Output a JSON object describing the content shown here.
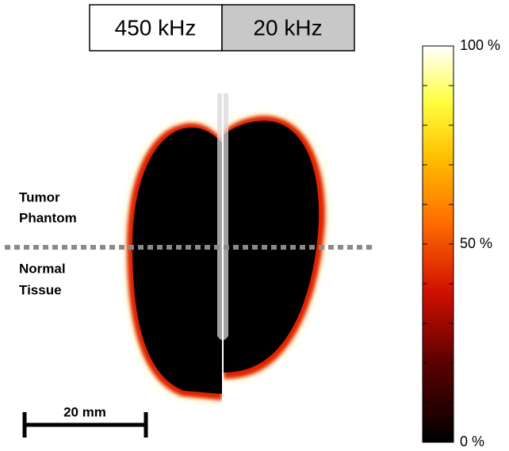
{
  "header": {
    "left": "450 kHz",
    "right": "20 kHz"
  },
  "labels": {
    "tumor": [
      "Tumor",
      "Phantom"
    ],
    "normal": [
      "Normal",
      "Tissue"
    ]
  },
  "scale_bar": "20 mm",
  "colorbar": {
    "lim": [
      0,
      100
    ],
    "ticks": [
      {
        "value": 100,
        "label": "100 %"
      },
      {
        "value": 50,
        "label": "50 %"
      },
      {
        "value": 0,
        "label": "0 %"
      }
    ],
    "minor_ticks": [
      10,
      20,
      30,
      40,
      60,
      70,
      80,
      90
    ]
  }
}
